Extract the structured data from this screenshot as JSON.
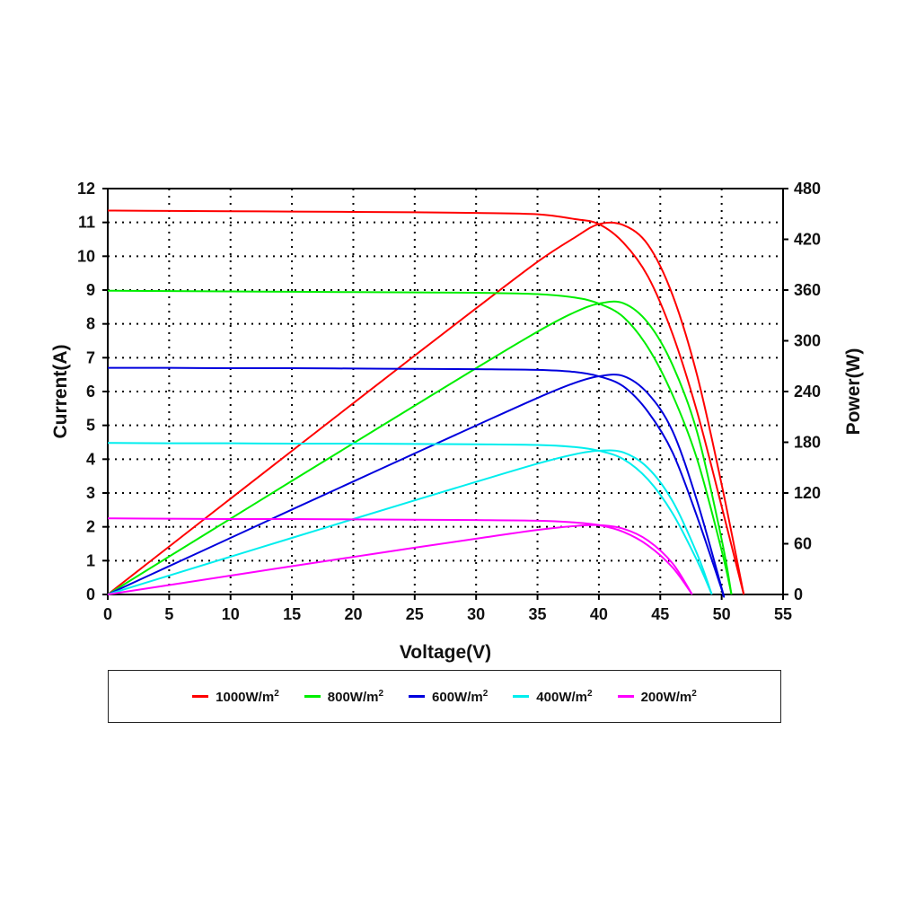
{
  "chart_data": {
    "type": "line",
    "xlabel": "Voltage(V)",
    "ylabel": "Current(A)",
    "y2label": "Power(W)",
    "xlim": [
      0,
      55
    ],
    "ylim": [
      0,
      12
    ],
    "y2lim": [
      0,
      480
    ],
    "xticks": [
      0,
      5,
      10,
      15,
      20,
      25,
      30,
      35,
      40,
      45,
      50,
      55
    ],
    "yticks": [
      0,
      1,
      2,
      3,
      4,
      5,
      6,
      7,
      8,
      9,
      10,
      11,
      12
    ],
    "y2ticks": [
      0,
      60,
      120,
      180,
      240,
      300,
      360,
      420,
      480
    ],
    "grid": "dotted",
    "legend_position": "bottom",
    "series": [
      {
        "name": "1000W/m",
        "sup": "2",
        "color": "#ff0000",
        "voltage": [
          0,
          5,
          10,
          15,
          20,
          25,
          30,
          35,
          38,
          40,
          42,
          44,
          46,
          48,
          50,
          51.8
        ],
        "current": [
          11.35,
          11.34,
          11.33,
          11.32,
          11.31,
          11.3,
          11.28,
          11.24,
          11.1,
          10.95,
          10.4,
          9.4,
          7.7,
          5.4,
          2.6,
          0
        ],
        "power": [
          0,
          56.7,
          113.3,
          169.8,
          226.2,
          282.5,
          338.4,
          393.4,
          421.8,
          438,
          436.8,
          413.6,
          354.2,
          259.2,
          130,
          0
        ]
      },
      {
        "name": "800W/m",
        "sup": "2",
        "color": "#00ee00",
        "voltage": [
          0,
          5,
          10,
          15,
          20,
          25,
          30,
          35,
          38,
          40,
          42,
          44,
          46,
          48,
          50,
          50.8
        ],
        "current": [
          8.98,
          8.97,
          8.96,
          8.95,
          8.94,
          8.93,
          8.92,
          8.88,
          8.78,
          8.6,
          8.2,
          7.3,
          5.9,
          4.0,
          1.3,
          0
        ],
        "power": [
          0,
          44.9,
          89.6,
          134.3,
          178.8,
          223.3,
          267.6,
          310.8,
          333.6,
          344,
          344.4,
          321.2,
          271.4,
          192,
          65,
          0
        ]
      },
      {
        "name": "600W/m",
        "sup": "2",
        "color": "#0000dd",
        "voltage": [
          0,
          5,
          10,
          15,
          20,
          25,
          30,
          35,
          38,
          40,
          42,
          44,
          46,
          48,
          50,
          50.1
        ],
        "current": [
          6.7,
          6.7,
          6.69,
          6.69,
          6.68,
          6.67,
          6.66,
          6.64,
          6.58,
          6.45,
          6.15,
          5.4,
          4.2,
          2.3,
          0.15,
          0
        ],
        "power": [
          0,
          33.5,
          66.9,
          100.4,
          133.6,
          166.8,
          199.8,
          232.4,
          250,
          258,
          258.3,
          237.6,
          193.2,
          110.4,
          7.5,
          0
        ]
      },
      {
        "name": "400W/m",
        "sup": "2",
        "color": "#00eeee",
        "voltage": [
          0,
          5,
          10,
          15,
          20,
          25,
          30,
          35,
          38,
          40,
          42,
          44,
          46,
          48,
          49.2
        ],
        "current": [
          4.48,
          4.47,
          4.47,
          4.46,
          4.46,
          4.45,
          4.44,
          4.42,
          4.36,
          4.25,
          4.0,
          3.4,
          2.4,
          1.0,
          0
        ],
        "power": [
          0,
          22.4,
          44.7,
          66.9,
          89.2,
          111.3,
          133.2,
          154.7,
          165.7,
          170,
          168,
          149.6,
          110.4,
          48,
          0
        ]
      },
      {
        "name": "200W/m",
        "sup": "2",
        "color": "#ff00ff",
        "voltage": [
          0,
          5,
          10,
          15,
          20,
          25,
          30,
          35,
          38,
          40,
          42,
          44,
          46,
          47.6
        ],
        "current": [
          2.25,
          2.24,
          2.23,
          2.23,
          2.22,
          2.21,
          2.2,
          2.18,
          2.13,
          2.05,
          1.85,
          1.45,
          0.8,
          0
        ],
        "power": [
          0,
          11.2,
          22.3,
          33.5,
          44.4,
          55.3,
          66,
          76.3,
          80.9,
          82,
          77.7,
          63.8,
          36.8,
          0
        ]
      }
    ]
  }
}
